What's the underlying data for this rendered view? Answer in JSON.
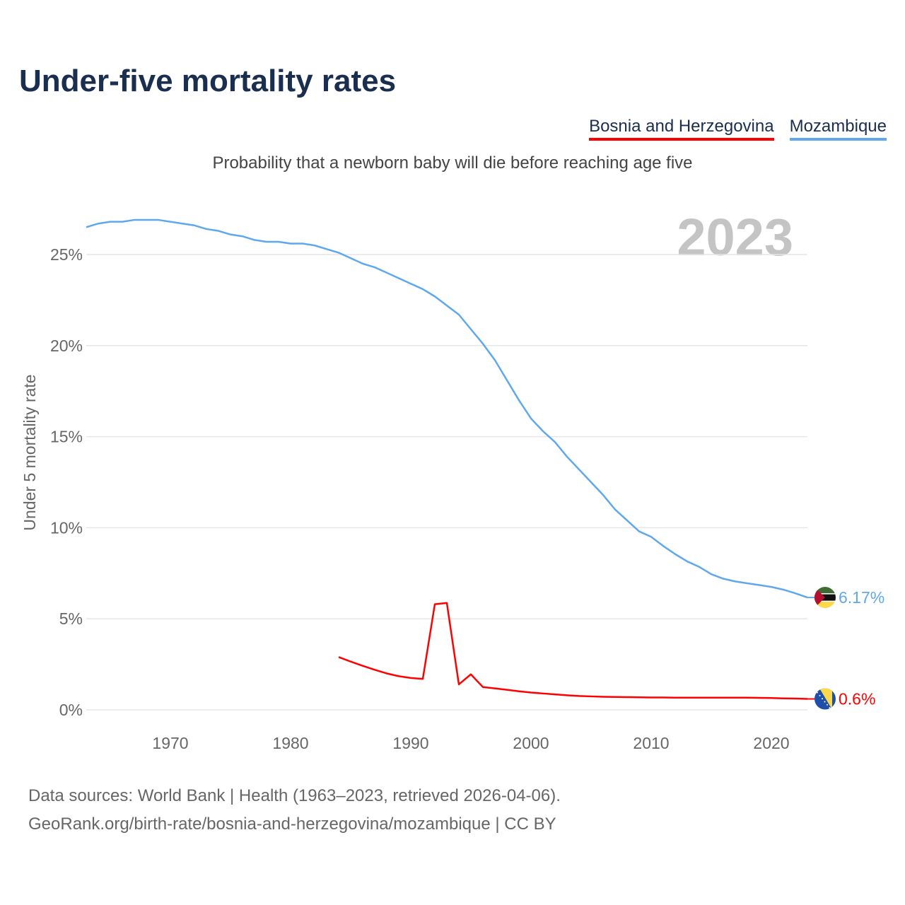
{
  "title": "Under-five mortality rates",
  "subtitle": "Probability that a newborn baby will die before reaching age five",
  "footer": {
    "line1": "Data sources: World Bank | Health (1963–2023, retrieved 2026-04-06).",
    "line2": "GeoRank.org/birth-rate/bosnia-and-herzegovina/mozambique | CC BY"
  },
  "chart_data": {
    "type": "line",
    "title": "Under-five mortality rates",
    "ylabel": "Under 5 mortality rate",
    "xlabel": "",
    "xlim": [
      1963,
      2023
    ],
    "ylim": [
      0,
      27
    ],
    "xticks": [
      "1970",
      "1980",
      "1990",
      "2000",
      "2010",
      "2020"
    ],
    "yticks": [
      "0%",
      "5%",
      "10%",
      "15%",
      "20%",
      "25%"
    ],
    "year_label": "2023",
    "grid": true,
    "legend_placement": "top-right",
    "series": [
      {
        "name": "Bosnia and Herzegovina",
        "color": "#ff0000",
        "end_label": "0.6%",
        "x": [
          1984,
          1985,
          1986,
          1987,
          1988,
          1989,
          1990,
          1991,
          1992,
          1993,
          1994,
          1995,
          1996,
          1997,
          1998,
          1999,
          2000,
          2001,
          2002,
          2003,
          2004,
          2005,
          2006,
          2007,
          2008,
          2009,
          2010,
          2011,
          2012,
          2013,
          2014,
          2015,
          2016,
          2017,
          2018,
          2019,
          2020,
          2021,
          2022,
          2023
        ],
        "values": [
          2.9,
          2.65,
          2.42,
          2.2,
          2.0,
          1.85,
          1.75,
          1.7,
          5.8,
          5.87,
          1.4,
          1.95,
          1.25,
          1.18,
          1.1,
          1.02,
          0.95,
          0.9,
          0.85,
          0.8,
          0.76,
          0.74,
          0.72,
          0.71,
          0.7,
          0.69,
          0.68,
          0.68,
          0.67,
          0.67,
          0.67,
          0.67,
          0.67,
          0.67,
          0.67,
          0.66,
          0.65,
          0.63,
          0.62,
          0.6
        ]
      },
      {
        "name": "Mozambique",
        "color": "#5fa8ee",
        "end_label": "6.17%",
        "x": [
          1963,
          1964,
          1965,
          1966,
          1967,
          1968,
          1969,
          1970,
          1971,
          1972,
          1973,
          1974,
          1975,
          1976,
          1977,
          1978,
          1979,
          1980,
          1981,
          1982,
          1983,
          1984,
          1985,
          1986,
          1987,
          1988,
          1989,
          1990,
          1991,
          1992,
          1993,
          1994,
          1995,
          1996,
          1997,
          1998,
          1999,
          2000,
          2001,
          2002,
          2003,
          2004,
          2005,
          2006,
          2007,
          2008,
          2009,
          2010,
          2011,
          2012,
          2013,
          2014,
          2015,
          2016,
          2017,
          2018,
          2019,
          2020,
          2021,
          2022,
          2023
        ],
        "values": [
          26.5,
          26.7,
          26.8,
          26.8,
          26.9,
          26.9,
          26.9,
          26.8,
          26.7,
          26.6,
          26.4,
          26.3,
          26.1,
          26.0,
          25.8,
          25.7,
          25.7,
          25.6,
          25.6,
          25.5,
          25.3,
          25.1,
          24.8,
          24.5,
          24.3,
          24.0,
          23.7,
          23.4,
          23.1,
          22.7,
          22.2,
          21.7,
          20.9,
          20.1,
          19.2,
          18.1,
          17.0,
          16.0,
          15.3,
          14.7,
          13.9,
          13.2,
          12.5,
          11.8,
          11.0,
          10.4,
          9.8,
          9.5,
          9.0,
          8.55,
          8.15,
          7.85,
          7.45,
          7.2,
          7.05,
          6.95,
          6.85,
          6.75,
          6.6,
          6.4,
          6.17
        ]
      }
    ]
  }
}
